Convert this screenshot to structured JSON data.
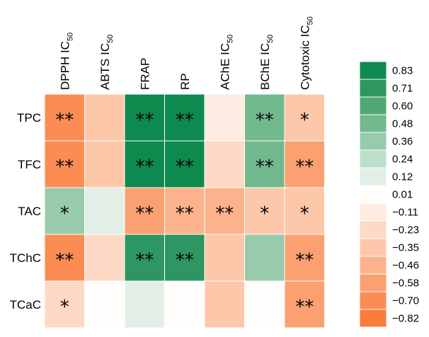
{
  "chart_data": {
    "type": "heatmap",
    "columns": [
      {
        "label": "DPPH IC",
        "sub": "50"
      },
      {
        "label": "ABTS IC",
        "sub": "50"
      },
      {
        "label": "FRAP",
        "sub": ""
      },
      {
        "label": "RP",
        "sub": ""
      },
      {
        "label": "AChE IC",
        "sub": "50"
      },
      {
        "label": "BChE IC",
        "sub": "50"
      },
      {
        "label": "Cytotoxic IC",
        "sub": "50"
      }
    ],
    "rows": [
      "TPC",
      "TFC",
      "TAC",
      "TChC",
      "TCaC"
    ],
    "values": [
      [
        -0.7,
        -0.3,
        0.88,
        0.88,
        -0.08,
        0.48,
        -0.4
      ],
      [
        -0.7,
        -0.3,
        0.88,
        0.88,
        -0.2,
        0.48,
        -0.58
      ],
      [
        0.3,
        0.12,
        -0.58,
        -0.46,
        -0.46,
        -0.3,
        -0.4
      ],
      [
        -0.7,
        -0.25,
        0.72,
        0.72,
        -0.3,
        0.3,
        -0.62
      ],
      [
        -0.25,
        0.01,
        0.12,
        0.01,
        -0.35,
        0.01,
        -0.58
      ]
    ],
    "significance": [
      [
        "**",
        "",
        "**",
        "**",
        "",
        "**",
        "*"
      ],
      [
        "**",
        "",
        "**",
        "**",
        "",
        "**",
        "**"
      ],
      [
        "*",
        "",
        "**",
        "**",
        "**",
        "*",
        "*"
      ],
      [
        "**",
        "",
        "**",
        "**",
        "",
        "",
        "**"
      ],
      [
        "*",
        "",
        "",
        "",
        "",
        "",
        "**"
      ]
    ],
    "legend": {
      "labels": [
        "0.83",
        "0.71",
        "0.60",
        "0.48",
        "0.36",
        "0.24",
        "0.12",
        "0.01",
        "-0.11",
        "-0.23",
        "-0.35",
        "-0.46",
        "-0.58",
        "-0.70",
        "-0.82"
      ],
      "colors": [
        "#0f8a4f",
        "#2e9660",
        "#4fa873",
        "#72b98e",
        "#97cbac",
        "#bcdfcb",
        "#e1efe6",
        "#fffdfb",
        "#feebe1",
        "#fed9c6",
        "#fdc7aa",
        "#fcb38d",
        "#fba070",
        "#fb8c54",
        "#fa7c3c"
      ]
    }
  }
}
